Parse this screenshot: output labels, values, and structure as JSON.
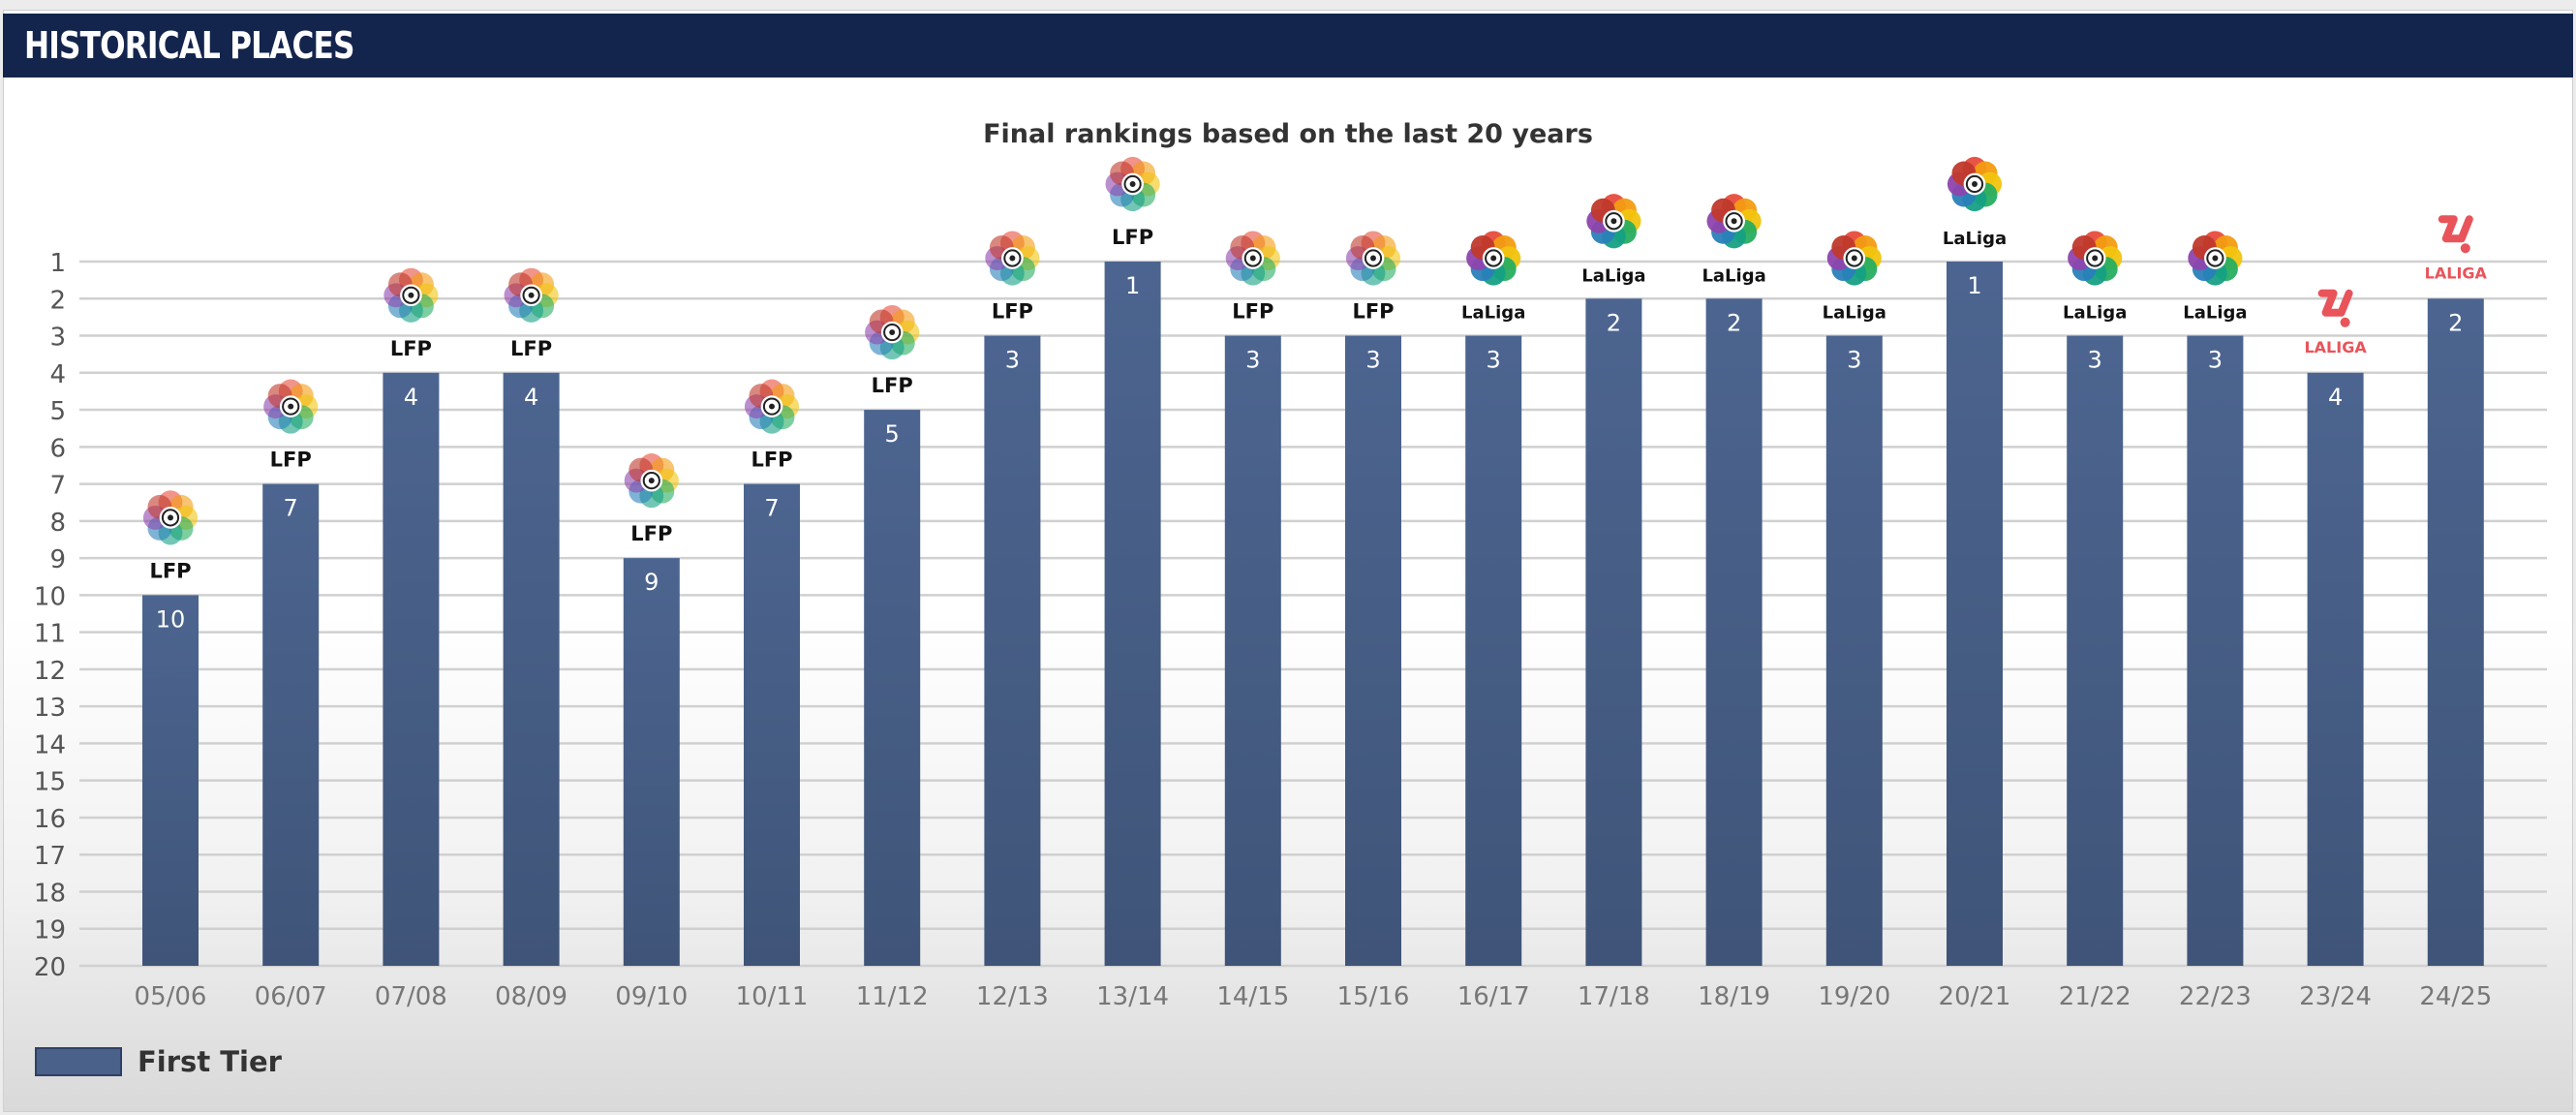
{
  "header": {
    "title": "HISTORICAL PLACES"
  },
  "colors": {
    "header_bg": "#14254d",
    "bar": "#4a618a",
    "bar_dark": "#3f5680",
    "grid": "#d0d0d0",
    "laliga_red": "#e8545a"
  },
  "chart_data": {
    "type": "bar",
    "title": "Final rankings based on the last 20 years",
    "xlabel": "",
    "ylabel": "",
    "ylim": [
      20,
      1
    ],
    "y_inverted": true,
    "y_ticks": [
      "1",
      "2",
      "3",
      "4",
      "5",
      "6",
      "7",
      "8",
      "9",
      "10",
      "11",
      "12",
      "13",
      "14",
      "15",
      "16",
      "17",
      "18",
      "19",
      "20"
    ],
    "grid": true,
    "legend_position": "bottom-left",
    "categories": [
      "05/06",
      "06/07",
      "07/08",
      "08/09",
      "09/10",
      "10/11",
      "11/12",
      "12/13",
      "13/14",
      "14/15",
      "15/16",
      "16/17",
      "17/18",
      "18/19",
      "19/20",
      "20/21",
      "21/22",
      "22/23",
      "23/24",
      "24/25"
    ],
    "series": [
      {
        "name": "First Tier",
        "values": [
          10,
          7,
          4,
          4,
          9,
          7,
          5,
          3,
          1,
          3,
          3,
          3,
          2,
          2,
          3,
          1,
          3,
          3,
          4,
          2
        ],
        "color": "#4a618a"
      }
    ],
    "league_badges": [
      "LFP",
      "LFP",
      "LFP",
      "LFP",
      "LFP",
      "LFP",
      "LFP",
      "LFP",
      "LFP",
      "LFP",
      "LFP",
      "LaLiga",
      "LaLiga",
      "LaLiga",
      "LaLiga",
      "LaLiga",
      "LaLiga",
      "LaLiga",
      "LALIGA",
      "LALIGA"
    ],
    "badge_icons": [
      "lfp-flower-icon",
      "lfp-flower-icon",
      "lfp-flower-icon",
      "lfp-flower-icon",
      "lfp-flower-icon",
      "lfp-flower-icon",
      "lfp-flower-icon",
      "lfp-flower-icon",
      "lfp-flower-icon",
      "lfp-flower-icon",
      "lfp-flower-icon",
      "laliga-flower-icon",
      "laliga-flower-icon",
      "laliga-flower-icon",
      "laliga-flower-icon",
      "laliga-flower-icon",
      "laliga-flower-icon",
      "laliga-flower-icon",
      "laliga-new-logo-icon",
      "laliga-new-logo-icon"
    ]
  }
}
